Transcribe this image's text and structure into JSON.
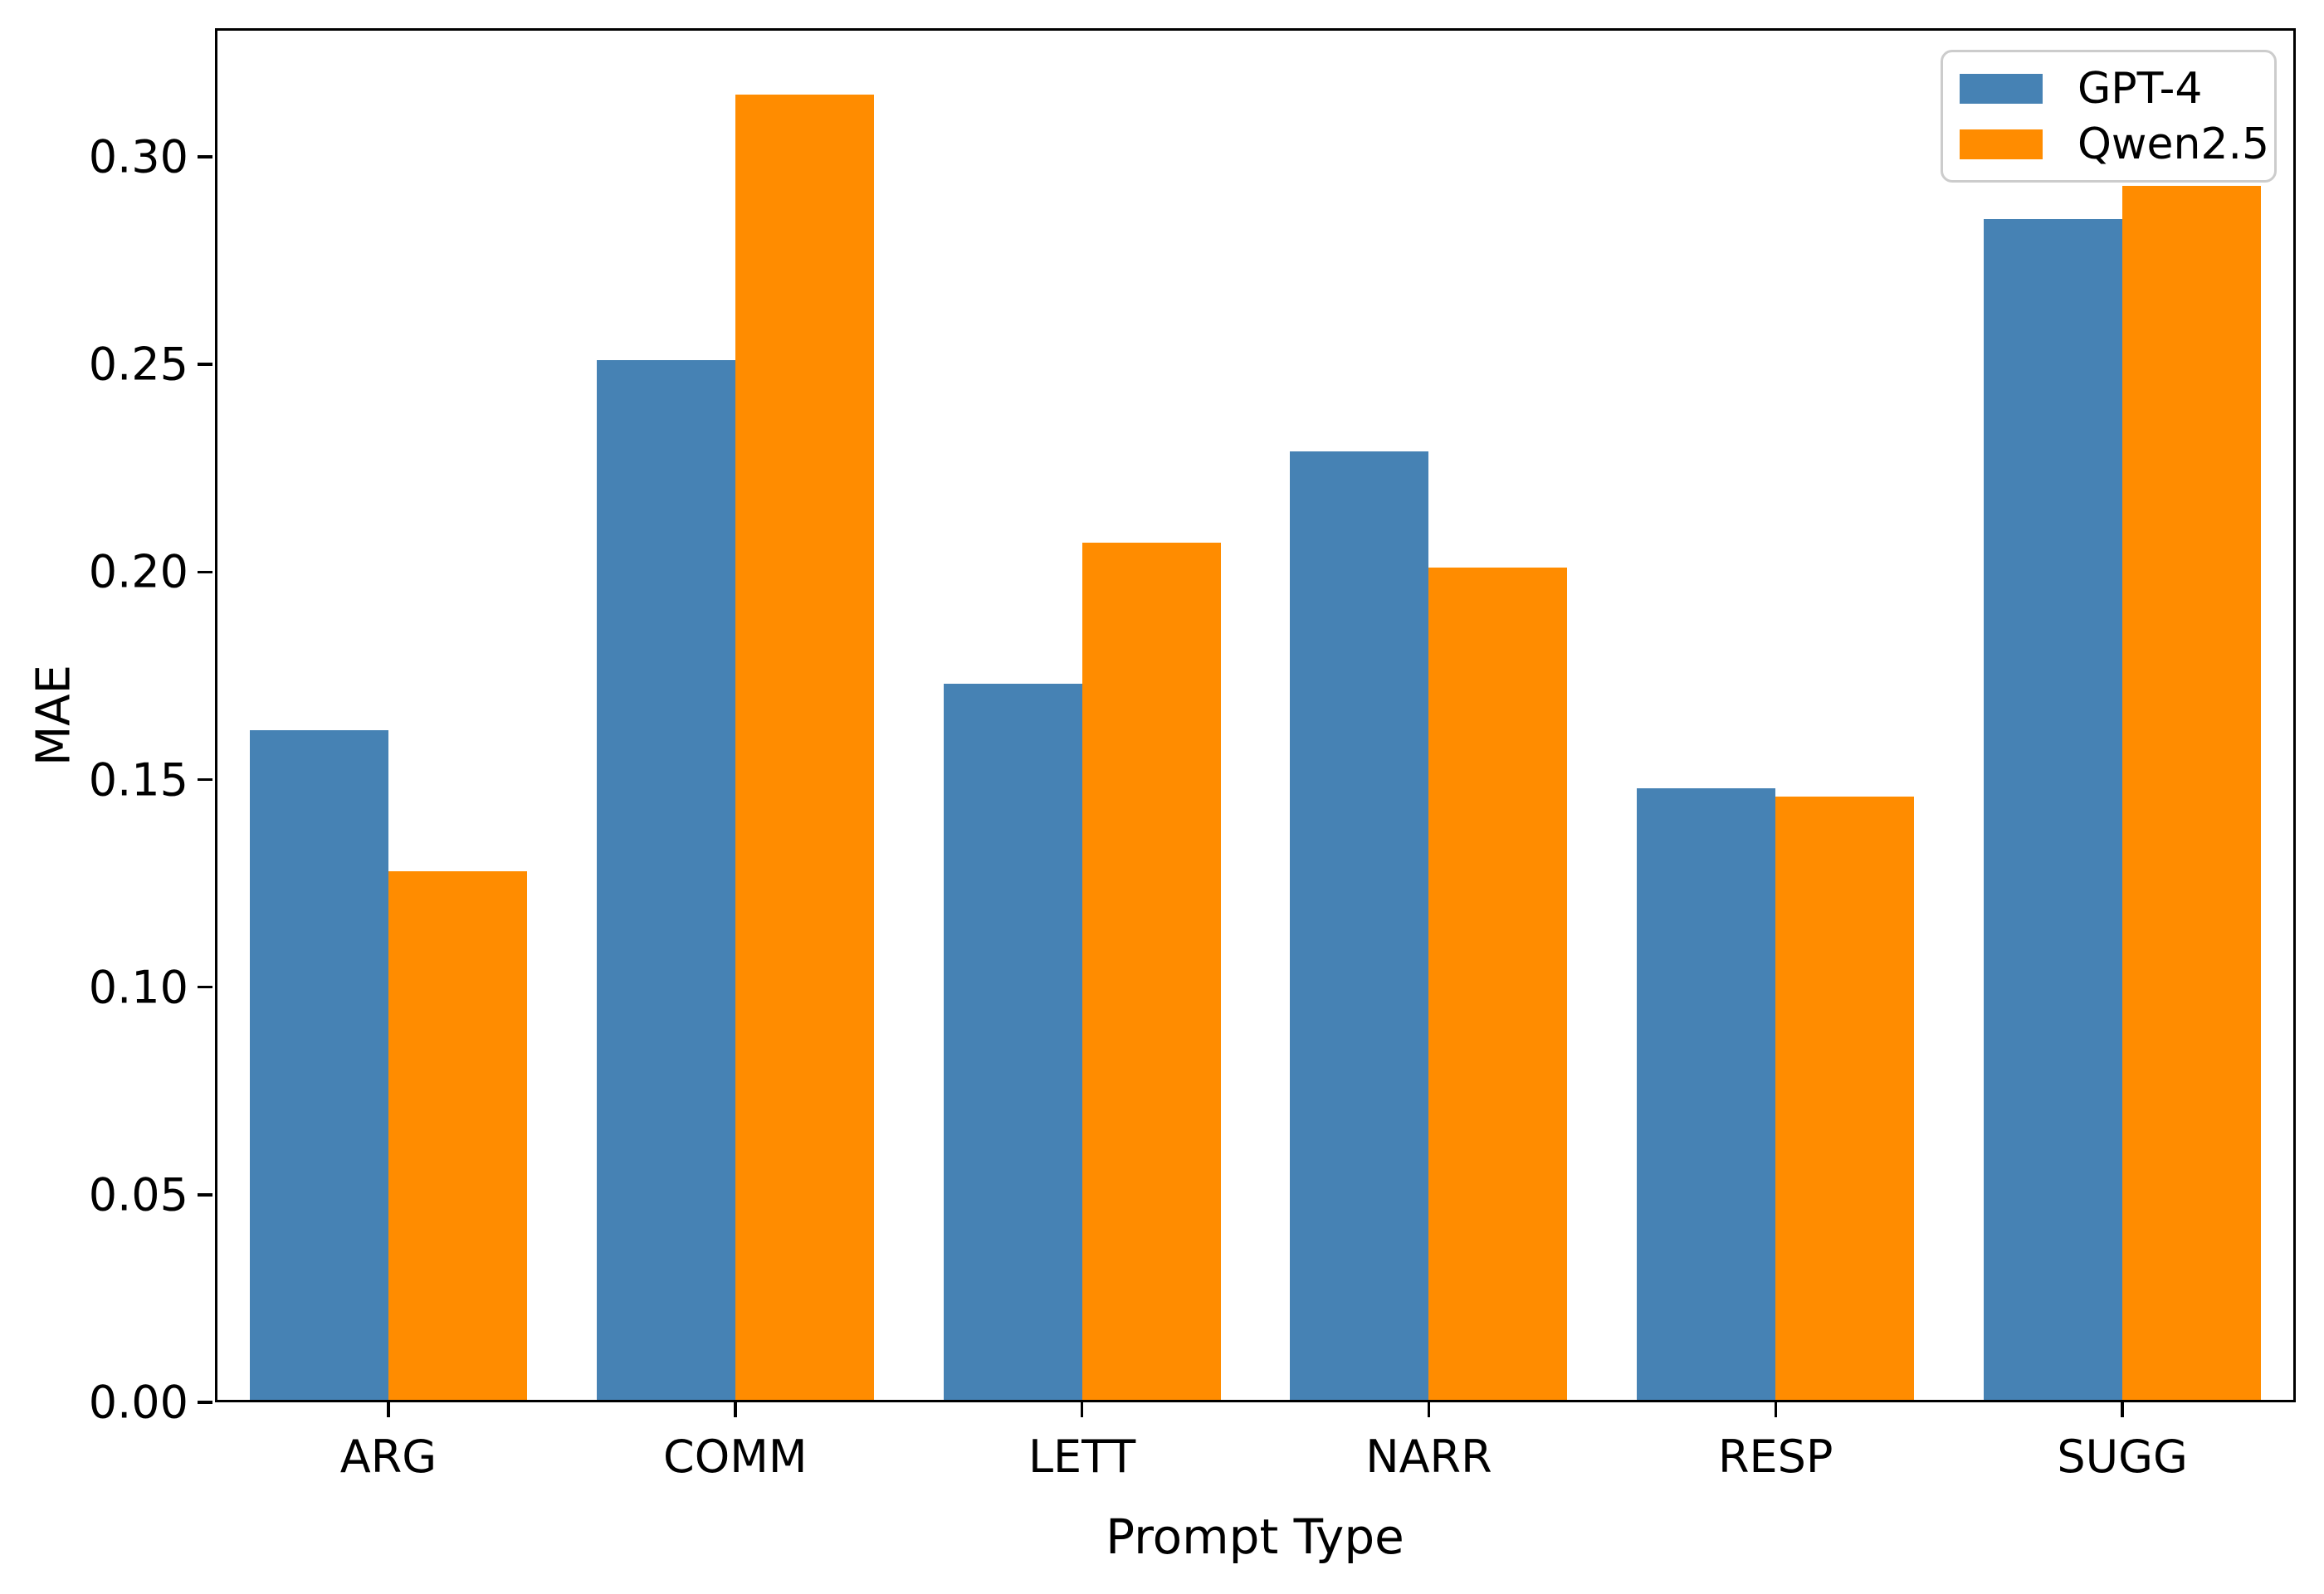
{
  "chart_data": {
    "type": "bar",
    "title": "",
    "xlabel": "Prompt Type",
    "ylabel": "MAE",
    "categories": [
      "ARG",
      "COMM",
      "LETT",
      "NARR",
      "RESP",
      "SUGG"
    ],
    "series": [
      {
        "name": "GPT-4",
        "color": "#4682B4",
        "values": [
          0.162,
          0.251,
          0.173,
          0.229,
          0.148,
          0.285
        ]
      },
      {
        "name": "Qwen2.5",
        "color": "#FF8C00",
        "values": [
          0.128,
          0.315,
          0.207,
          0.201,
          0.146,
          0.293
        ]
      }
    ],
    "ylim": [
      0,
      0.331
    ],
    "yticks": [
      0.0,
      0.05,
      0.1,
      0.15,
      0.2,
      0.25,
      0.3
    ],
    "ytick_labels": [
      "0.00",
      "0.05",
      "0.10",
      "0.15",
      "0.20",
      "0.25",
      "0.30"
    ],
    "grid": false,
    "legend_position": "upper right",
    "bar_group_width_ratio": 0.4,
    "background_color": "#ffffff",
    "axis_color": "#000000"
  }
}
